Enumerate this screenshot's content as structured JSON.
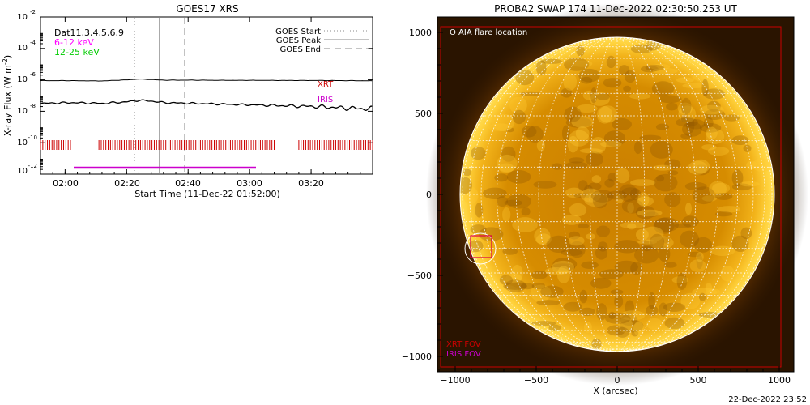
{
  "goes_panel": {
    "title": "GOES17 XRS",
    "ylabel_prefix": "X-ray Flux (W m",
    "ylabel_sup": "-2",
    "ylabel_suffix": ")",
    "xlabel": "Start Time (11-Dec-22 01:52:00)",
    "legend_left": [
      {
        "text": "Dat11,3,4,5,6,9",
        "color": "#000000"
      },
      {
        "text": "6-12 keV",
        "color": "#ff00ff"
      },
      {
        "text": "12-25 keV",
        "color": "#00cc00"
      }
    ],
    "legend_right": [
      {
        "text": "GOES Start",
        "style": "dotted"
      },
      {
        "text": "GOES Peak",
        "style": "solid"
      },
      {
        "text": "GOES End",
        "style": "dashed"
      }
    ],
    "xrt_label": "XRT",
    "iris_label": "IRIS",
    "colors": {
      "xrt": "#cc0000",
      "iris": "#cc00cc",
      "flux": "#000000"
    }
  },
  "swap_panel": {
    "title": "PROBA2 SWAP 174 11-Dec-2022 02:30:50.253 UT",
    "legend": "O AIA flare location",
    "xlabel": "X (arcsec)",
    "xrt_fov": "XRT FOV",
    "iris_fov": "IRIS FOV",
    "colors": {
      "xrt": "#cc0000",
      "iris": "#cc00cc",
      "sun": "#e39a00",
      "grid": "#ffffff"
    }
  },
  "timestamp": "22-Dec-2022 23:52",
  "chart_data": [
    {
      "type": "line",
      "title": "GOES17 XRS",
      "xlabel": "Start Time (11-Dec-22 01:52:00)",
      "ylabel": "X-ray Flux (W m-2)",
      "yscale": "log",
      "ylim": [
        1e-12,
        0.01
      ],
      "xlim_minutes_after_start": [
        0,
        108
      ],
      "x_ticks": [
        "02:00",
        "02:20",
        "02:40",
        "03:00",
        "03:20"
      ],
      "x_tick_minutes": [
        8,
        28,
        48,
        68,
        88
      ],
      "y_ticks": [
        "10⁻¹²",
        "10⁻¹⁰",
        "10⁻⁸",
        "10⁻⁶",
        "10⁻⁴",
        "10⁻²"
      ],
      "y_tick_exponents": [
        -12,
        -10,
        -8,
        -6,
        -4,
        -2
      ],
      "series": [
        {
          "name": "12-25 keV",
          "x_minutes": [
            0,
            10,
            20,
            28,
            32,
            36,
            40,
            50,
            60,
            70,
            80,
            90,
            100,
            108
          ],
          "y_log10": [
            -6.05,
            -6.05,
            -6.07,
            -6.0,
            -5.95,
            -5.98,
            -6.02,
            -6.02,
            -6.03,
            -6.03,
            -6.04,
            -6.04,
            -6.05,
            -6.06
          ]
        },
        {
          "name": "6-12 keV",
          "x_minutes": [
            0,
            10,
            20,
            28,
            32,
            36,
            40,
            50,
            60,
            70,
            80,
            90,
            100,
            108
          ],
          "y_log10": [
            -7.5,
            -7.45,
            -7.5,
            -7.4,
            -7.3,
            -7.35,
            -7.45,
            -7.5,
            -7.55,
            -7.6,
            -7.65,
            -7.7,
            -7.8,
            -7.85
          ]
        }
      ],
      "markers": {
        "goes_start_minutes": 28,
        "goes_peak_minutes": 37,
        "goes_end_minutes": 46
      },
      "xrt_coverage_minutes": [
        [
          0,
          10
        ],
        [
          19,
          76
        ],
        [
          84,
          108
        ]
      ],
      "iris_coverage_minutes": [
        [
          10,
          70
        ]
      ],
      "grid": false
    }
  ]
}
